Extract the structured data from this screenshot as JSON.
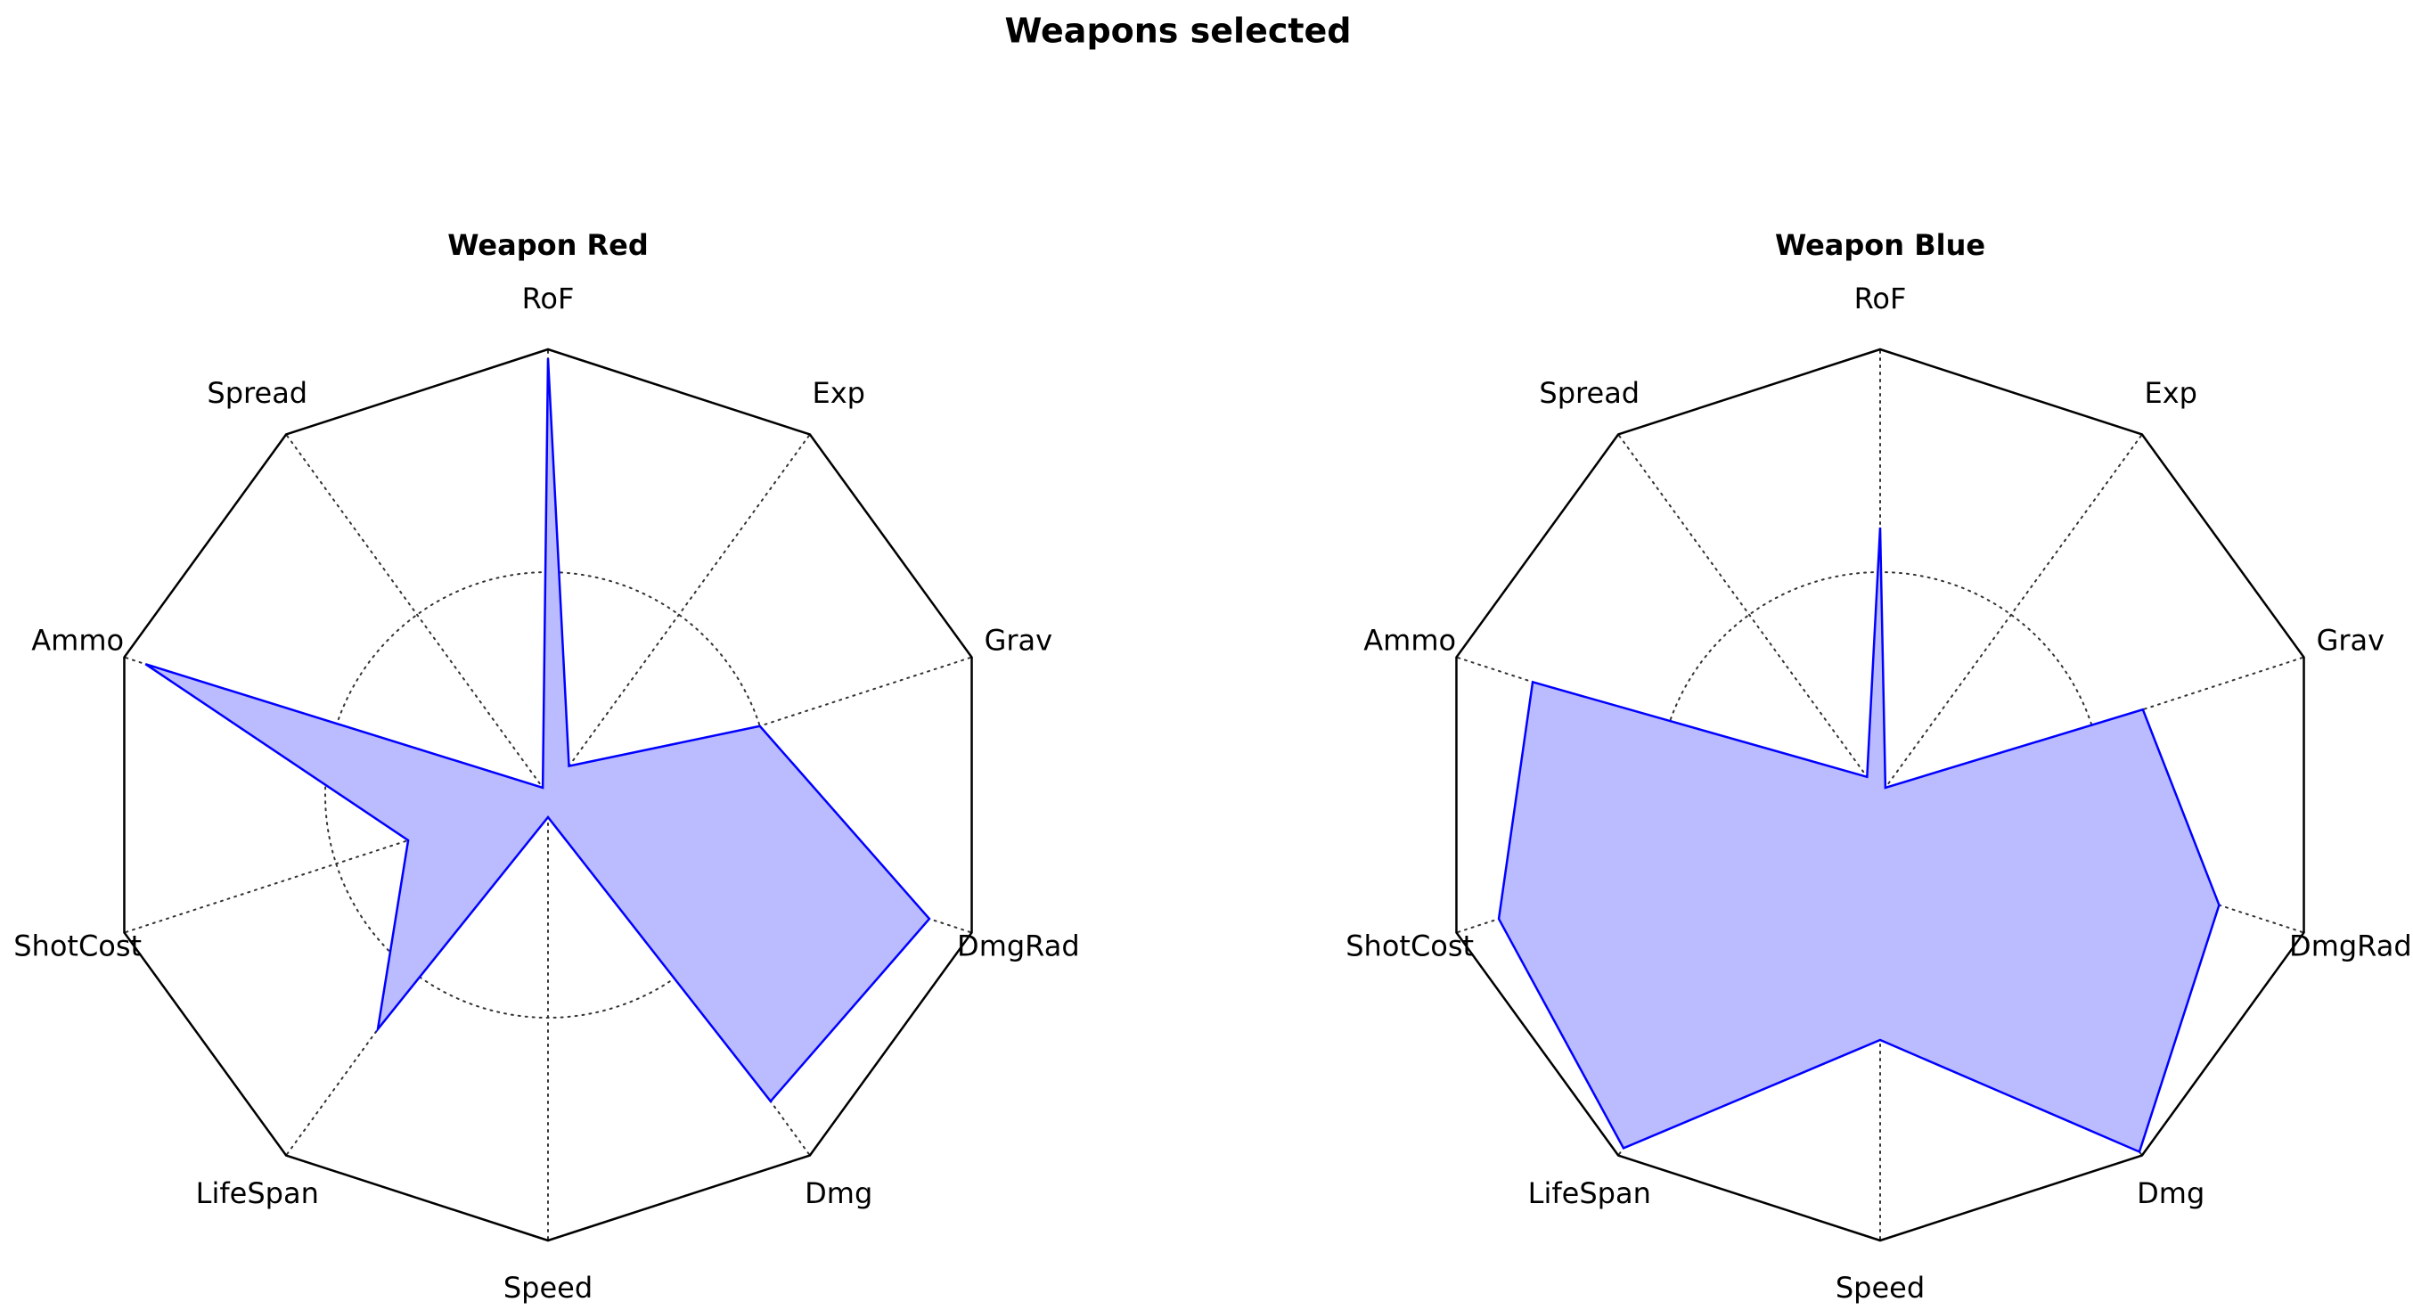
{
  "title": "Weapons selected",
  "chart_data": [
    {
      "type": "radar",
      "title": "Weapon Red",
      "axes": [
        "RoF",
        "Exp",
        "Grav",
        "DmgRad",
        "Dmg",
        "Speed",
        "LifeSpan",
        "ShotCost",
        "Ammo",
        "Spread"
      ],
      "rlim": [
        0,
        1
      ],
      "series": [
        {
          "values": [
            0.98,
            0.08,
            0.5,
            0.9,
            0.85,
            0.05,
            0.65,
            0.33,
            0.95,
            0.02
          ]
        }
      ],
      "colors": {
        "line": "#0000ff",
        "fill": "#bbbbff"
      }
    },
    {
      "type": "radar",
      "title": "Weapon Blue",
      "axes": [
        "RoF",
        "Exp",
        "Grav",
        "DmgRad",
        "Dmg",
        "Speed",
        "LifeSpan",
        "ShotCost",
        "Ammo",
        "Spread"
      ],
      "rlim": [
        0,
        1
      ],
      "series": [
        {
          "values": [
            0.6,
            0.02,
            0.62,
            0.8,
            0.99,
            0.55,
            0.98,
            0.9,
            0.82,
            0.05
          ]
        }
      ],
      "colors": {
        "line": "#0000ff",
        "fill": "#bbbbff"
      }
    }
  ]
}
